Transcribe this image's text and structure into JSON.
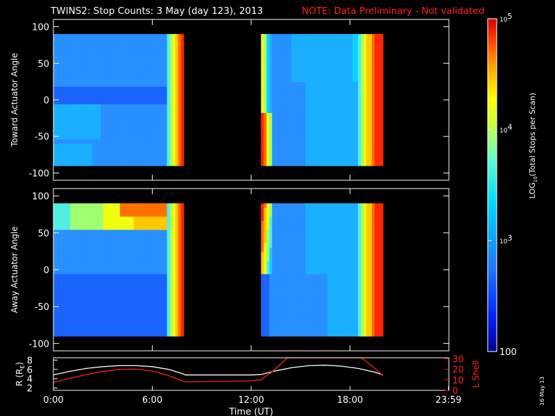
{
  "header": {
    "title": "TWINS2: Stop Counts:  3 May (day 123), 2013",
    "note": "NOTE: Data Preliminary - Not validated"
  },
  "colors": {
    "note": "#ff2020",
    "r_line": "#ffffff",
    "lshell_line": "#ff2020",
    "axes": "#ffffff"
  },
  "colorbar": {
    "label_html": "LOG10(Total Stops per Scan)",
    "label_parts": [
      "LOG",
      "10",
      "(Total Stops per Scan)"
    ],
    "ticks": [
      {
        "text": "10",
        "sup": "5",
        "value": 100000
      },
      {
        "text": "10",
        "sup": "4",
        "value": 10000
      },
      {
        "text": "10",
        "sup": "3",
        "value": 1000
      },
      {
        "text": "100",
        "sup": "",
        "value": 100
      }
    ],
    "range": [
      100,
      100000
    ],
    "scale": "log"
  },
  "date_stamp": "16 May 13",
  "chart_data": [
    {
      "type": "heatmap",
      "title": "",
      "ylabel": "Toward Actuator Angle",
      "xlabel": "",
      "ylim": [
        -110,
        110
      ],
      "yticks": [
        "100",
        "50",
        "0",
        "-50",
        "-100"
      ],
      "ytick_values": [
        100,
        50,
        0,
        -50,
        -100
      ],
      "x_range_hours": [
        0,
        24
      ],
      "data_intervals_hours": [
        [
          0.0,
          7.9
        ],
        [
          12.6,
          20.0
        ]
      ],
      "angle_range": [
        -90,
        90
      ]
    },
    {
      "type": "heatmap",
      "title": "",
      "ylabel": "Away Actuator Angle",
      "xlabel": "",
      "ylim": [
        -110,
        110
      ],
      "yticks": [
        "100",
        "50",
        "0",
        "-50",
        "-100"
      ],
      "ytick_values": [
        100,
        50,
        0,
        -50,
        -100
      ],
      "x_range_hours": [
        0,
        24
      ],
      "data_intervals_hours": [
        [
          0.0,
          7.9
        ],
        [
          12.6,
          20.0
        ]
      ],
      "angle_range": [
        -90,
        90
      ]
    },
    {
      "type": "line",
      "title": "",
      "xlabel": "Time (UT)",
      "ylabel_left": "R (RE)",
      "ylabel_left_parts": [
        "R (R",
        "E",
        ")"
      ],
      "ylabel_right": "L Shell",
      "xticks": [
        "0:00",
        "6:00",
        "12:00",
        "18:00",
        "23:59"
      ],
      "xtick_values": [
        0,
        6,
        12,
        18,
        23.98
      ],
      "ylim_left": [
        1.5,
        8.5
      ],
      "yticks_left": [
        "8",
        "6",
        "4",
        "2"
      ],
      "ytick_left_values": [
        8,
        6,
        4,
        2
      ],
      "ylim_right": [
        0,
        31
      ],
      "yticks_right": [
        "30",
        "20",
        "10",
        "0"
      ],
      "ytick_right_values": [
        30,
        20,
        10,
        0
      ],
      "series": [
        {
          "axis": "left",
          "x": [
            0.0,
            1.0,
            2.0,
            3.0,
            4.0,
            5.0,
            6.0,
            7.0,
            7.9,
            8.0,
            10.0,
            12.0,
            12.6,
            13.5,
            14.5,
            15.5,
            16.5,
            17.5,
            18.5,
            19.5,
            20.0
          ],
          "y": [
            4.8,
            5.6,
            6.2,
            6.6,
            6.8,
            6.8,
            6.6,
            6.0,
            5.0,
            4.8,
            4.8,
            4.8,
            4.9,
            5.7,
            6.4,
            6.8,
            6.9,
            6.7,
            6.2,
            5.4,
            4.8
          ]
        },
        {
          "axis": "right",
          "x": [
            0.0,
            1.0,
            2.0,
            3.0,
            4.0,
            5.0,
            6.0,
            7.0,
            7.9,
            8.0,
            10.0,
            12.0,
            12.6,
            13.3,
            14.0,
            14.2,
            18.7,
            19.5,
            20.0
          ],
          "y": [
            7.5,
            11.5,
            15.0,
            18.0,
            20.0,
            20.2,
            18.5,
            14.0,
            8.5,
            8.0,
            8.5,
            9.0,
            10.0,
            18.0,
            28.0,
            31.0,
            31.0,
            21.0,
            14.0
          ]
        }
      ]
    }
  ]
}
